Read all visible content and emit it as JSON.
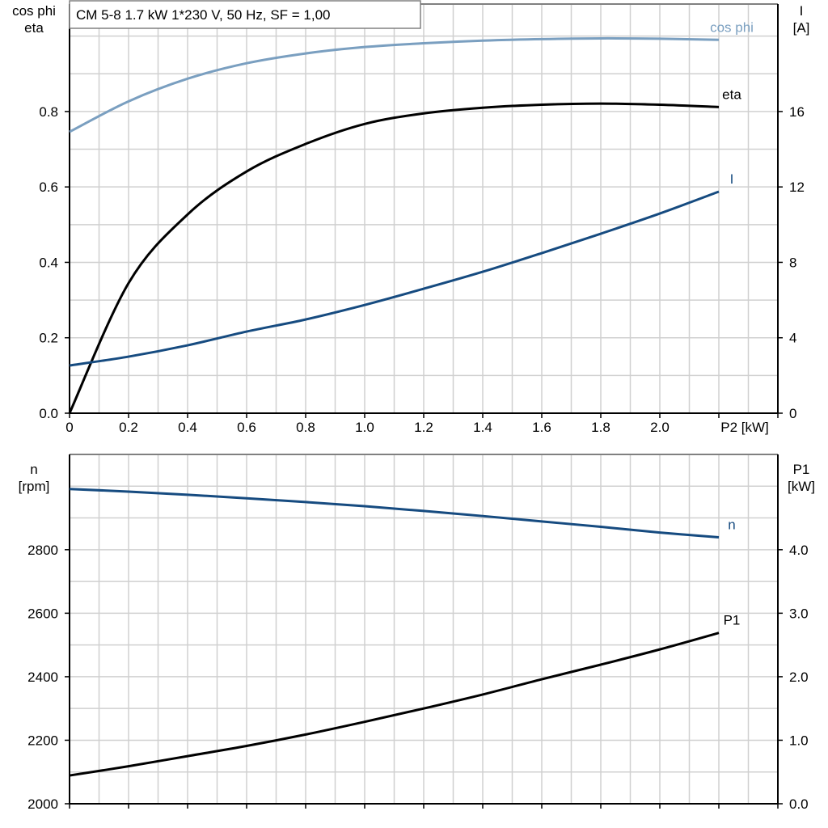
{
  "chart_data": [
    {
      "type": "line",
      "title": "CM 5-8   1.7 kW   1*230 V, 50 Hz, SF = 1,00",
      "xlabel": "P2 [kW]",
      "ylabel_left": [
        "cos phi",
        "eta"
      ],
      "ylabel_right": [
        "I",
        "[A]"
      ],
      "xlim": [
        0,
        2.4
      ],
      "ylim_left": [
        0,
        1.085
      ],
      "ylim_right": [
        0,
        21.7
      ],
      "grid": true,
      "x_ticks": [
        "0",
        "0.2",
        "0.4",
        "0.6",
        "0.8",
        "1.0",
        "1.2",
        "1.4",
        "1.6",
        "1.8",
        "2.0"
      ],
      "y_left_ticks": [
        "0.0",
        "0.2",
        "0.4",
        "0.6",
        "0.8"
      ],
      "y_right_ticks": [
        "0",
        "4",
        "8",
        "12",
        "16"
      ],
      "x": [
        0,
        0.2,
        0.4,
        0.6,
        0.8,
        1.0,
        1.2,
        1.4,
        1.6,
        1.8,
        2.0,
        2.2
      ],
      "series": [
        {
          "name": "cos phi",
          "axis": "left",
          "color": "#7a9fc0",
          "values": [
            0.746,
            0.827,
            0.887,
            0.928,
            0.954,
            0.971,
            0.981,
            0.988,
            0.992,
            0.994,
            0.993,
            0.99
          ]
        },
        {
          "name": "eta",
          "axis": "left",
          "color": "#000000",
          "values": [
            0,
            0.345,
            0.527,
            0.641,
            0.714,
            0.767,
            0.795,
            0.81,
            0.818,
            0.821,
            0.818,
            0.812
          ]
        },
        {
          "name": "I",
          "axis": "right",
          "color": "#164b80",
          "values": [
            2.53,
            3.0,
            3.6,
            4.33,
            4.97,
            5.74,
            6.6,
            7.5,
            8.49,
            9.52,
            10.59,
            11.75
          ]
        }
      ]
    },
    {
      "type": "line",
      "ylabel_left": [
        "n",
        "[rpm]"
      ],
      "ylabel_right": [
        "P1",
        "[kW]"
      ],
      "xlim": [
        0,
        2.4
      ],
      "ylim_left": [
        2000,
        3100
      ],
      "ylim_right": [
        0,
        5.5
      ],
      "grid": true,
      "y_left_ticks": [
        "2000",
        "2200",
        "2400",
        "2600",
        "2800"
      ],
      "y_right_ticks": [
        "0.0",
        "1.0",
        "2.0",
        "3.0",
        "4.0"
      ],
      "x": [
        0,
        0.2,
        0.4,
        0.6,
        0.8,
        1.0,
        1.2,
        1.4,
        1.6,
        1.8,
        2.0,
        2.2
      ],
      "series": [
        {
          "name": "n",
          "axis": "left",
          "color": "#164b80",
          "values": [
            2991,
            2983,
            2973,
            2962,
            2950,
            2937,
            2922,
            2906,
            2889,
            2872,
            2854,
            2839
          ]
        },
        {
          "name": "P1",
          "axis": "right",
          "color": "#000000",
          "values": [
            0.445,
            0.59,
            0.75,
            0.91,
            1.09,
            1.29,
            1.5,
            1.72,
            1.96,
            2.19,
            2.43,
            2.69
          ]
        }
      ]
    }
  ]
}
